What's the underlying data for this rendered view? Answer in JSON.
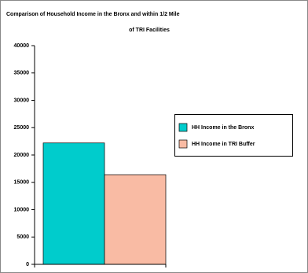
{
  "chart_data": {
    "type": "bar",
    "title": "Comparison of Household Income in the Bronx and within 1/2 Mile",
    "subtitle": "of TRI Facilities",
    "categories": [
      null
    ],
    "series": [
      {
        "name": "HH Income in the Bronx",
        "color": "#00cccc",
        "values": [
          22200
        ]
      },
      {
        "name": "HH Income in TRI Buffer",
        "color": "#f9bba4",
        "values": [
          16400
        ]
      }
    ],
    "ylim": [
      0,
      40000
    ],
    "yticks": [
      0,
      5000,
      10000,
      15000,
      20000,
      25000,
      30000,
      35000,
      40000
    ],
    "grid": false,
    "legend": "right"
  }
}
